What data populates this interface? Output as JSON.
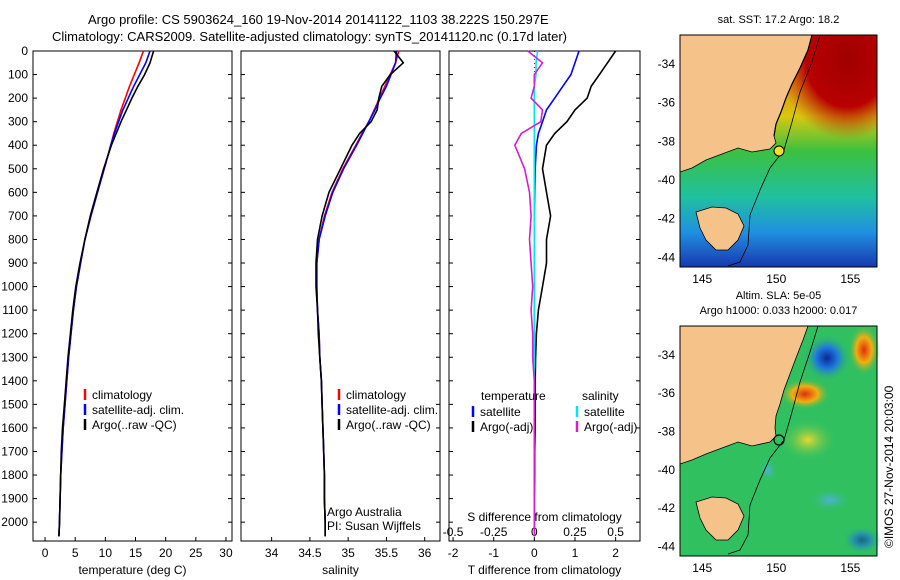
{
  "title_line1": "Argo profile: CS 5903624_160 19-Nov-2014 20141122_1103 38.222S 150.297E",
  "title_line2": "Climatology: CARS2009. Satellite-adjusted climatology: synTS_20141120.nc (0.17d later)",
  "credit": "©IMOS 27-Nov-2014 20:03:00",
  "colors": {
    "climatology": "#ff0000",
    "satellite": "#0000ff",
    "argo": "#000000",
    "sal_satellite": "#00e5ee",
    "sal_argo": "#d020d0",
    "land": "#f5c28a"
  },
  "chart_data": [
    {
      "type": "line",
      "name": "temperature-profile",
      "xlabel": "temperature (deg C)",
      "ylabel": "",
      "xlim": [
        -2,
        31
      ],
      "ylim": [
        2080,
        0
      ],
      "xticks": [
        "0",
        "5",
        "10",
        "15",
        "20",
        "25",
        "30"
      ],
      "yticks": [
        "0",
        "100",
        "200",
        "300",
        "400",
        "500",
        "600",
        "700",
        "800",
        "900",
        "1000",
        "1100",
        "1200",
        "1300",
        "1400",
        "1500",
        "1600",
        "1700",
        "1800",
        "1900",
        "2000"
      ],
      "depth": [
        0,
        50,
        100,
        150,
        200,
        250,
        300,
        350,
        400,
        500,
        600,
        700,
        800,
        900,
        1000,
        1100,
        1200,
        1300,
        1400,
        1500,
        1600,
        1700,
        1800,
        1900,
        2000,
        2060
      ],
      "series": [
        {
          "name": "climatology",
          "values": [
            16.3,
            15.6,
            14.8,
            14.0,
            13.3,
            12.6,
            12.0,
            11.4,
            10.9,
            9.8,
            8.7,
            7.6,
            6.6,
            5.9,
            5.2,
            4.7,
            4.3,
            3.9,
            3.6,
            3.3,
            3.0,
            2.8,
            2.6,
            2.5,
            2.4,
            2.3
          ]
        },
        {
          "name": "satellite-adj. clim.",
          "values": [
            17.4,
            16.7,
            15.7,
            14.7,
            13.8,
            12.9,
            12.2,
            11.5,
            10.9,
            9.8,
            8.7,
            7.6,
            6.6,
            5.9,
            5.2,
            4.7,
            4.3,
            3.9,
            3.6,
            3.3,
            3.0,
            2.8,
            2.6,
            2.5,
            2.4,
            2.3
          ]
        },
        {
          "name": "Argo(..raw -QC)",
          "values": [
            18.0,
            17.4,
            16.5,
            15.4,
            14.4,
            13.5,
            12.6,
            11.8,
            11.0,
            9.7,
            8.6,
            7.5,
            6.6,
            5.8,
            5.1,
            4.6,
            4.2,
            3.8,
            3.5,
            3.2,
            2.9,
            2.7,
            2.6,
            2.5,
            2.4,
            2.3
          ]
        }
      ],
      "legend": [
        "climatology",
        "satellite-adj. clim.",
        "Argo(..raw -QC)"
      ]
    },
    {
      "type": "line",
      "name": "salinity-profile",
      "xlabel": "salinity",
      "xlim": [
        33.6,
        36.2
      ],
      "ylim": [
        2080,
        0
      ],
      "xticks": [
        "34",
        "34.5",
        "35",
        "35.5",
        "36"
      ],
      "depth": [
        0,
        50,
        100,
        150,
        200,
        250,
        300,
        350,
        400,
        500,
        600,
        700,
        800,
        900,
        1000,
        1100,
        1200,
        1300,
        1400,
        1500,
        1600,
        1700,
        1800,
        1900,
        2000,
        2060
      ],
      "series": [
        {
          "name": "climatology",
          "values": [
            35.66,
            35.62,
            35.55,
            35.48,
            35.41,
            35.34,
            35.27,
            35.18,
            35.1,
            34.93,
            34.79,
            34.69,
            34.62,
            34.59,
            34.59,
            34.6,
            34.62,
            34.63,
            34.65,
            34.66,
            34.67,
            34.68,
            34.69,
            34.69,
            34.7,
            34.7
          ]
        },
        {
          "name": "satellite-adj. clim.",
          "values": [
            35.63,
            35.62,
            35.56,
            35.5,
            35.42,
            35.35,
            35.27,
            35.19,
            35.11,
            34.94,
            34.8,
            34.7,
            34.62,
            34.59,
            34.59,
            34.6,
            34.62,
            34.63,
            34.65,
            34.66,
            34.67,
            34.68,
            34.69,
            34.69,
            34.7,
            34.7
          ]
        },
        {
          "name": "Argo(..raw -QC)",
          "values": [
            35.6,
            35.72,
            35.55,
            35.44,
            35.4,
            35.38,
            35.3,
            35.15,
            35.05,
            34.9,
            34.75,
            34.66,
            34.6,
            34.58,
            34.58,
            34.6,
            34.61,
            34.63,
            34.65,
            34.66,
            34.67,
            34.68,
            34.69,
            34.69,
            34.7,
            34.7
          ]
        }
      ],
      "legend": [
        "climatology",
        "satellite-adj. clim.",
        "Argo(..raw -QC)"
      ],
      "annotation": [
        "Argo Australia",
        "PI: Susan Wijffels"
      ]
    },
    {
      "type": "line",
      "name": "difference-profile",
      "xlabel": "T difference from climatology",
      "xlabel_top": "S difference from climatology",
      "xlim": [
        -2.1,
        2.6
      ],
      "ylim": [
        2080,
        0
      ],
      "xticks_bottom": [
        "-2",
        "-1",
        "0",
        "1",
        "2"
      ],
      "xticks_top": [
        "-0.5",
        "-0.25",
        "0",
        "0.25",
        "0.5"
      ],
      "depth": [
        0,
        50,
        100,
        150,
        200,
        250,
        300,
        350,
        400,
        500,
        600,
        700,
        800,
        900,
        1000,
        1100,
        1200,
        1300,
        1400,
        1500,
        1600,
        1700,
        1800,
        1900,
        2000,
        2060
      ],
      "series": [
        {
          "name": "temperature satellite",
          "values": [
            1.1,
            1.0,
            0.9,
            0.7,
            0.5,
            0.3,
            0.2,
            0.1,
            0.05,
            0.02,
            0.01,
            0,
            0,
            0,
            0,
            0,
            0,
            0,
            0,
            0,
            0,
            0,
            0,
            0,
            0,
            0
          ]
        },
        {
          "name": "temperature Argo(-adj)",
          "values": [
            2.0,
            1.8,
            1.6,
            1.4,
            1.3,
            1.0,
            0.8,
            0.5,
            0.3,
            0.2,
            0.3,
            0.4,
            0.3,
            0.3,
            0.2,
            0.1,
            0.05,
            0.03,
            0.02,
            0.02,
            0.02,
            0.01,
            0.01,
            0,
            0,
            0
          ]
        },
        {
          "name": "salinity satellite",
          "values": [
            0.02,
            0.01,
            0.01,
            0.0,
            0.0,
            0.0,
            0.0,
            0.0,
            0.0,
            0.0,
            0.0,
            0.0,
            0.0,
            0.0,
            0.0,
            0.0,
            0.0,
            0.0,
            0.0,
            0.0,
            0.0,
            0.0,
            0.0,
            0.0,
            0.0,
            0.0
          ]
        },
        {
          "name": "salinity Argo(-adj)",
          "values": [
            -0.04,
            0.05,
            0.0,
            0.0,
            -0.02,
            0.05,
            0.04,
            -0.08,
            -0.12,
            -0.06,
            -0.03,
            -0.02,
            -0.03,
            -0.02,
            -0.01,
            -0.02,
            -0.01,
            -0.01,
            0,
            0,
            0,
            0,
            0,
            0,
            0,
            0
          ]
        }
      ],
      "legend": {
        "temperature_header": "temperature",
        "salinity_header": "salinity",
        "items": [
          "satellite",
          "Argo(-adj)",
          "satellite",
          "Argo(-adj)"
        ]
      }
    }
  ],
  "maps": [
    {
      "name": "sst-map",
      "title": "sat. SST: 17.2  Argo: 18.2",
      "yticks": [
        "-34",
        "-36",
        "-38",
        "-40",
        "-42",
        "-44"
      ],
      "xticks": [
        "145",
        "150",
        "155"
      ]
    },
    {
      "name": "sla-map",
      "title_line1": "Altim. SLA: 5e-05",
      "title_line2": "Argo h1000: 0.033 h2000: 0.017",
      "yticks": [
        "-34",
        "-36",
        "-38",
        "-40",
        "-42",
        "-44"
      ],
      "xticks": [
        "145",
        "150",
        "155"
      ]
    }
  ]
}
